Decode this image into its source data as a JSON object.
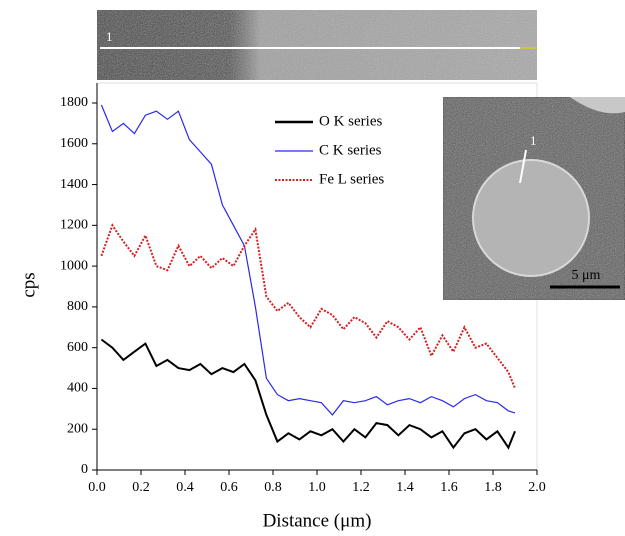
{
  "chart_data": {
    "type": "line",
    "xlabel": "Distance (μm)",
    "ylabel": "cps",
    "x": [
      0.02,
      0.07,
      0.12,
      0.17,
      0.22,
      0.27,
      0.32,
      0.37,
      0.42,
      0.47,
      0.52,
      0.57,
      0.62,
      0.67,
      0.72,
      0.77,
      0.82,
      0.87,
      0.92,
      0.97,
      1.02,
      1.07,
      1.12,
      1.17,
      1.22,
      1.27,
      1.32,
      1.37,
      1.42,
      1.47,
      1.52,
      1.57,
      1.62,
      1.67,
      1.72,
      1.77,
      1.82,
      1.87,
      1.9
    ],
    "series": [
      {
        "name": "O K series",
        "color": "#000000",
        "style": "solid",
        "values": [
          640,
          600,
          540,
          580,
          620,
          510,
          540,
          500,
          490,
          520,
          470,
          500,
          480,
          520,
          440,
          270,
          140,
          180,
          150,
          190,
          170,
          200,
          140,
          200,
          160,
          230,
          220,
          170,
          220,
          200,
          160,
          190,
          110,
          180,
          200,
          150,
          190,
          110,
          190
        ]
      },
      {
        "name": "C K series",
        "color": "#2a2aee",
        "style": "solid",
        "values": [
          1790,
          1660,
          1700,
          1650,
          1740,
          1760,
          1720,
          1760,
          1620,
          1560,
          1500,
          1300,
          1200,
          1100,
          800,
          450,
          370,
          340,
          350,
          340,
          330,
          270,
          340,
          330,
          340,
          360,
          320,
          340,
          350,
          330,
          360,
          340,
          310,
          350,
          370,
          340,
          330,
          290,
          280
        ]
      },
      {
        "name": "Fe L series",
        "color": "#d42020",
        "style": "dotted",
        "values": [
          1050,
          1200,
          1120,
          1050,
          1150,
          1000,
          980,
          1100,
          1000,
          1050,
          990,
          1040,
          1000,
          1100,
          1180,
          850,
          780,
          820,
          750,
          700,
          790,
          760,
          690,
          750,
          720,
          650,
          730,
          700,
          640,
          700,
          560,
          660,
          580,
          700,
          600,
          620,
          550,
          480,
          400
        ]
      }
    ],
    "xlim": [
      0,
      2
    ],
    "ylim": [
      0,
      1800
    ],
    "xticks": [
      {
        "value": 0,
        "label": "0.0"
      },
      0.2,
      0.4,
      0.6,
      0.8,
      {
        "value": 1,
        "label": "1.0"
      },
      1.2,
      1.4,
      1.6,
      1.8,
      {
        "value": 2,
        "label": "2.0"
      }
    ],
    "yticks": [
      0,
      200,
      400,
      600,
      800,
      1000,
      1200,
      1400,
      1600,
      1800
    ],
    "annotations": [
      "1",
      "1",
      "5 μm"
    ]
  }
}
